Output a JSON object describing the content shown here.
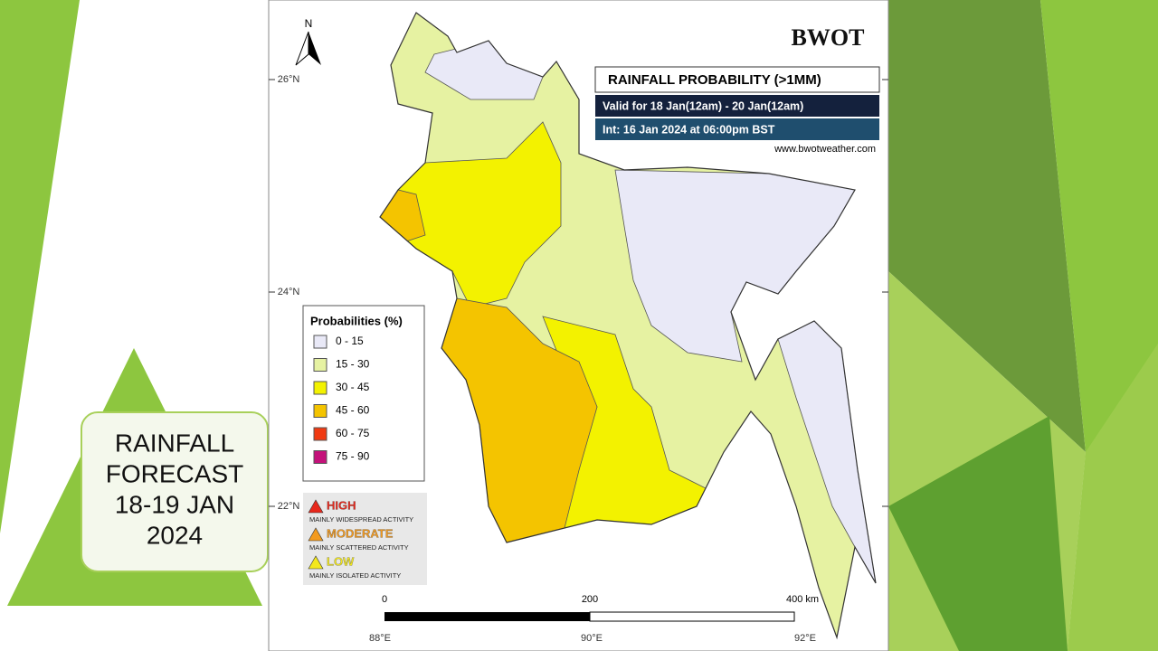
{
  "left_box": {
    "lines": [
      "RAINFALL",
      "FORECAST",
      "18-19 JAN",
      "2024"
    ]
  },
  "map": {
    "north_arrow": "N",
    "logo": "BWOT",
    "title": "RAINFALL PROBABILITY (>1MM)",
    "valid": "Valid for 18 Jan(12am) - 20 Jan(12am)",
    "init": "Int: 16 Jan 2024 at 06:00pm BST",
    "website": "www.bwotweather.com",
    "lat_labels": [
      "26°N",
      "24°N",
      "22°N"
    ],
    "lon_labels": [
      "88°E",
      "90°E",
      "92°E"
    ],
    "legend": {
      "title": "Probabilities (%)",
      "items": [
        {
          "label": "0 - 15",
          "color": "#e9e9f7"
        },
        {
          "label": "15 - 30",
          "color": "#e6f2a2"
        },
        {
          "label": "30 - 45",
          "color": "#f3f200"
        },
        {
          "label": "45 - 60",
          "color": "#f4c400"
        },
        {
          "label": "60 - 75",
          "color": "#f03a12"
        },
        {
          "label": "75 - 90",
          "color": "#c4127a"
        }
      ]
    },
    "alerts": [
      {
        "level": "HIGH",
        "desc": "MAINLY WIDESPREAD ACTIVITY",
        "color": "#e8281c"
      },
      {
        "level": "MODERATE",
        "desc": "MAINLY SCATTERED ACTIVITY",
        "color": "#f39a1e"
      },
      {
        "level": "LOW",
        "desc": "MAINLY ISOLATED ACTIVITY",
        "color": "#f3e81c"
      }
    ],
    "scale": [
      "0",
      "200",
      "400 km"
    ]
  }
}
